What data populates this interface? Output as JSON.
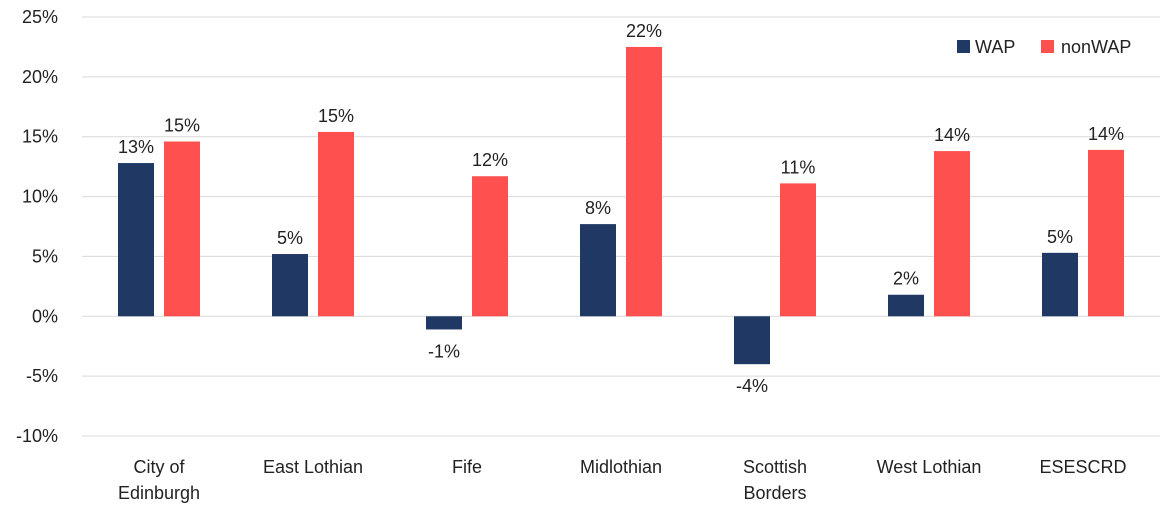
{
  "chart_data": {
    "type": "bar",
    "categories": [
      [
        "City of",
        "Edinburgh"
      ],
      [
        "East Lothian"
      ],
      [
        "Fife"
      ],
      [
        "Midlothian"
      ],
      [
        "Scottish",
        "Borders"
      ],
      [
        "West Lothian"
      ],
      [
        "ESESCRD"
      ]
    ],
    "series": [
      {
        "name": "WAP",
        "color": "#203864",
        "values": [
          12.8,
          5.2,
          -1.1,
          7.7,
          -4.0,
          1.8,
          5.3
        ],
        "labels": [
          "13%",
          "5%",
          "-1%",
          "8%",
          "-4%",
          "2%",
          "5%"
        ]
      },
      {
        "name": "nonWAP",
        "color": "#FF5050",
        "values": [
          14.6,
          15.4,
          11.7,
          22.5,
          11.1,
          13.8,
          13.9
        ],
        "labels": [
          "15%",
          "15%",
          "12%",
          "22%",
          "11%",
          "14%",
          "14%"
        ]
      }
    ],
    "ylim": [
      -10,
      25
    ],
    "yticks": [
      -10,
      -5,
      0,
      5,
      10,
      15,
      20,
      25
    ],
    "ytick_labels": [
      "-10%",
      "-5%",
      "0%",
      "5%",
      "10%",
      "15%",
      "20%",
      "25%"
    ],
    "grid": true,
    "legend": "top-right"
  }
}
